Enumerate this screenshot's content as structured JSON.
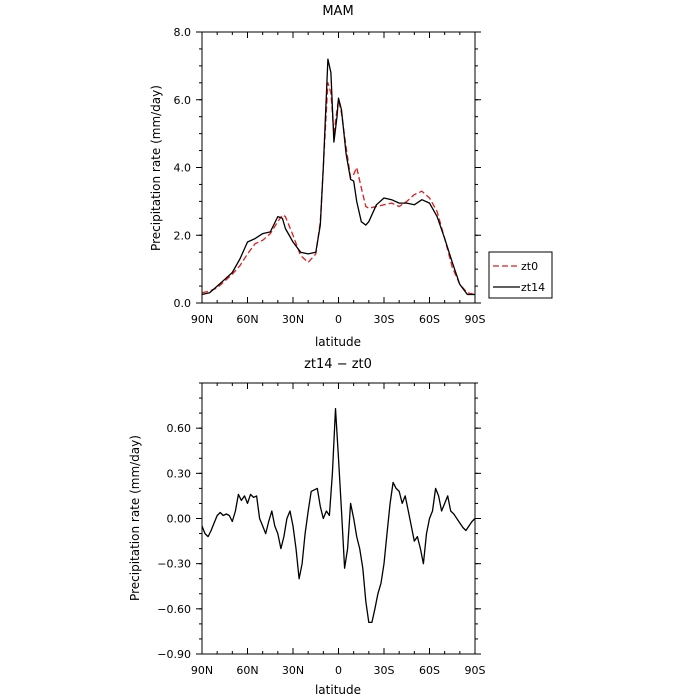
{
  "chart_data": [
    {
      "type": "line",
      "title": "MAM",
      "xlabel": "latitude",
      "ylabel": "Precipitation rate (mm/day)",
      "xlim": [
        90,
        -90
      ],
      "ylim": [
        0,
        8
      ],
      "x_ticks": [
        90,
        60,
        30,
        0,
        -30,
        -60,
        -90
      ],
      "x_tick_labels": [
        "90N",
        "60N",
        "30N",
        "0",
        "30S",
        "60S",
        "90S"
      ],
      "y_ticks": [
        0,
        2,
        4,
        6,
        8
      ],
      "y_tick_labels": [
        "0.0",
        "2.0",
        "4.0",
        "6.0",
        "8.0"
      ],
      "legend_position": "right",
      "series": [
        {
          "name": "zt0",
          "color": "#e41a1c",
          "dash": true,
          "x": [
            90,
            85,
            80,
            75,
            70,
            65,
            60,
            55,
            50,
            45,
            40,
            37,
            35,
            30,
            25,
            20,
            15,
            12,
            10,
            7,
            5,
            3,
            1,
            0,
            -2,
            -5,
            -8,
            -10,
            -12,
            -15,
            -18,
            -20,
            -25,
            -30,
            -35,
            -40,
            -45,
            -50,
            -55,
            -60,
            -65,
            -70,
            -75,
            -80,
            -85,
            -90
          ],
          "y": [
            0.3,
            0.35,
            0.45,
            0.65,
            0.85,
            1.1,
            1.45,
            1.75,
            1.85,
            2.05,
            2.4,
            2.6,
            2.55,
            2.0,
            1.4,
            1.2,
            1.45,
            2.4,
            4.0,
            6.5,
            6.2,
            5.0,
            5.7,
            6.0,
            5.6,
            4.6,
            3.7,
            3.8,
            4.0,
            3.4,
            2.85,
            2.8,
            2.85,
            2.9,
            2.95,
            2.85,
            3.0,
            3.2,
            3.3,
            3.1,
            2.7,
            1.9,
            1.05,
            0.55,
            0.3,
            0.25
          ]
        },
        {
          "name": "zt14",
          "color": "#000000",
          "dash": false,
          "x": [
            90,
            85,
            80,
            75,
            70,
            65,
            60,
            55,
            50,
            45,
            40,
            37,
            35,
            30,
            25,
            20,
            15,
            12,
            10,
            7,
            5,
            3,
            1,
            0,
            -2,
            -5,
            -8,
            -10,
            -12,
            -15,
            -18,
            -20,
            -25,
            -30,
            -35,
            -40,
            -45,
            -50,
            -55,
            -60,
            -65,
            -70,
            -75,
            -80,
            -85,
            -90
          ],
          "y": [
            0.25,
            0.3,
            0.5,
            0.7,
            0.9,
            1.3,
            1.8,
            1.9,
            2.05,
            2.1,
            2.55,
            2.5,
            2.2,
            1.8,
            1.5,
            1.45,
            1.5,
            2.3,
            4.0,
            7.2,
            6.8,
            4.75,
            5.5,
            6.05,
            5.7,
            4.4,
            3.65,
            3.6,
            3.0,
            2.4,
            2.3,
            2.4,
            2.9,
            3.1,
            3.05,
            2.95,
            2.95,
            2.9,
            3.05,
            2.95,
            2.55,
            1.9,
            1.2,
            0.55,
            0.25,
            0.25
          ]
        }
      ]
    },
    {
      "type": "line",
      "title": "zt14 − zt0",
      "xlabel": "latitude",
      "ylabel": "Precipitation rate (mm/day)",
      "xlim": [
        90,
        -90
      ],
      "ylim": [
        -0.9,
        0.9
      ],
      "x_ticks": [
        90,
        60,
        30,
        0,
        -30,
        -60,
        -90
      ],
      "x_tick_labels": [
        "90N",
        "60N",
        "30N",
        "0",
        "30S",
        "60S",
        "90S"
      ],
      "y_ticks": [
        -0.9,
        -0.6,
        -0.3,
        0,
        0.3,
        0.6
      ],
      "y_tick_labels": [
        "−0.90",
        "−0.60",
        "−0.30",
        "0.00",
        "0.30",
        "0.60"
      ],
      "series": [
        {
          "color": "#000000",
          "dash": false,
          "x": [
            90,
            88,
            86,
            84,
            82,
            80,
            78,
            76,
            74,
            72,
            70,
            68,
            66,
            64,
            62,
            60,
            58,
            56,
            54,
            52,
            50,
            48,
            46,
            44,
            42,
            40,
            38,
            36,
            34,
            32,
            30,
            28,
            26,
            24,
            22,
            20,
            18,
            16,
            14,
            12,
            10,
            8,
            6,
            4,
            2,
            0,
            -2,
            -4,
            -6,
            -8,
            -10,
            -12,
            -14,
            -16,
            -18,
            -20,
            -22,
            -24,
            -26,
            -28,
            -30,
            -32,
            -34,
            -36,
            -38,
            -40,
            -42,
            -44,
            -46,
            -48,
            -50,
            -52,
            -54,
            -56,
            -58,
            -60,
            -62,
            -64,
            -66,
            -68,
            -70,
            -72,
            -74,
            -76,
            -78,
            -80,
            -82,
            -84,
            -86,
            -88,
            -90
          ],
          "y": [
            -0.05,
            -0.1,
            -0.12,
            -0.08,
            -0.03,
            0.02,
            0.04,
            0.02,
            0.03,
            0.02,
            -0.02,
            0.05,
            0.16,
            0.12,
            0.15,
            0.1,
            0.16,
            0.14,
            0.15,
            0.0,
            -0.05,
            -0.1,
            -0.02,
            0.05,
            -0.05,
            -0.1,
            -0.2,
            -0.12,
            0.0,
            0.05,
            -0.05,
            -0.2,
            -0.4,
            -0.3,
            -0.1,
            0.05,
            0.18,
            0.19,
            0.2,
            0.08,
            0.0,
            0.05,
            0.02,
            0.3,
            0.73,
            0.4,
            0.05,
            -0.33,
            -0.2,
            0.1,
            0.0,
            -0.12,
            -0.2,
            -0.33,
            -0.55,
            -0.69,
            -0.69,
            -0.6,
            -0.5,
            -0.43,
            -0.3,
            -0.1,
            0.1,
            0.24,
            0.2,
            0.18,
            0.1,
            0.15,
            0.05,
            -0.05,
            -0.15,
            -0.12,
            -0.2,
            -0.3,
            -0.1,
            0.0,
            0.05,
            0.2,
            0.15,
            0.05,
            0.1,
            0.15,
            0.05,
            0.03,
            0.0,
            -0.03,
            -0.06,
            -0.08,
            -0.05,
            -0.02,
            0.0
          ]
        }
      ]
    }
  ]
}
